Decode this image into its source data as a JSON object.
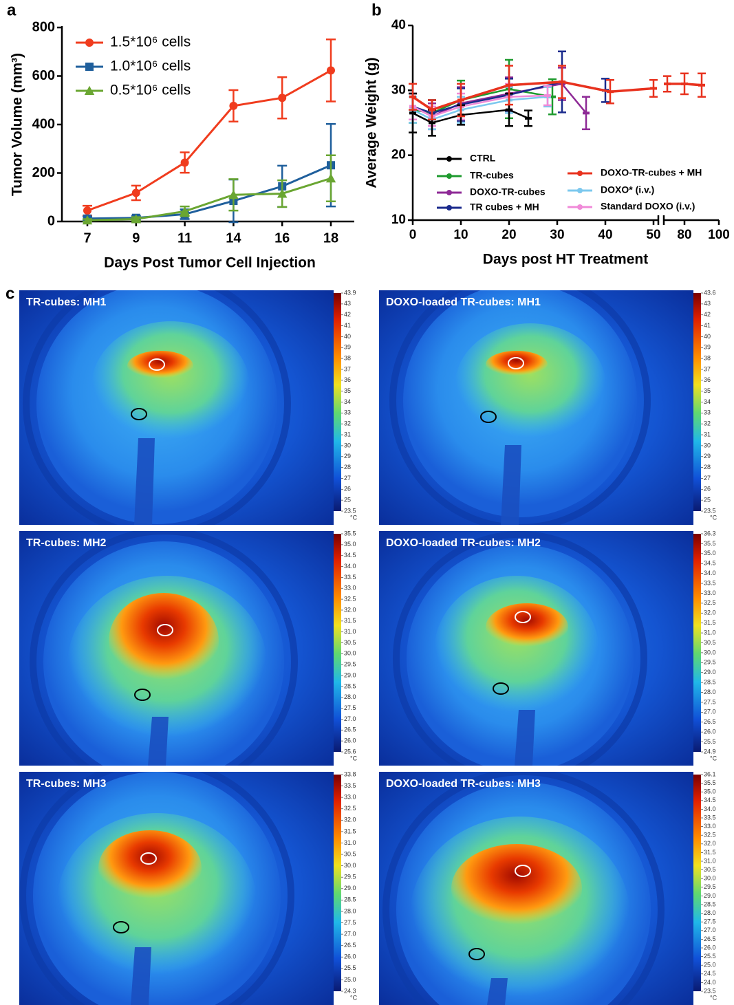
{
  "chart_data": [
    {
      "type": "line",
      "panel_label": "a",
      "xlabel": "Days Post Tumor Cell Injection",
      "ylabel": "Tumor Volume (mm³)",
      "categories": [
        "7",
        "9",
        "11",
        "14",
        "16",
        "18"
      ],
      "ylim": [
        0,
        800
      ],
      "yticks": [
        0,
        200,
        400,
        600,
        800
      ],
      "series": [
        {
          "name": "1.5*10⁶ cells",
          "color": "#f03c1e",
          "marker": "circle",
          "values": [
            45,
            118,
            243,
            477,
            510,
            623
          ],
          "errors": [
            20,
            30,
            42,
            65,
            85,
            128
          ]
        },
        {
          "name": "1.0*10⁶ cells",
          "color": "#1f5f9c",
          "marker": "square",
          "values": [
            12,
            15,
            30,
            85,
            145,
            232
          ],
          "errors": [
            8,
            8,
            20,
            88,
            85,
            170
          ]
        },
        {
          "name": "0.5*10⁶ cells",
          "color": "#6aa632",
          "marker": "triangle",
          "values": [
            5,
            10,
            42,
            110,
            115,
            178
          ],
          "errors": [
            5,
            8,
            20,
            65,
            55,
            95
          ]
        }
      ]
    },
    {
      "type": "line",
      "panel_label": "b",
      "xlabel": "Days post HT Treatment",
      "ylabel": "Average Weight (g)",
      "x_segments": [
        [
          0,
          51
        ],
        [
          68,
          100
        ]
      ],
      "xticks": [
        0,
        10,
        20,
        30,
        40,
        50,
        80,
        100
      ],
      "ylim": [
        10,
        40
      ],
      "yticks": [
        10,
        20,
        30,
        40
      ],
      "series": [
        {
          "name": "CTRL",
          "color": "#000000",
          "x": [
            0,
            4,
            10,
            20,
            24
          ],
          "values": [
            26.5,
            25,
            26.2,
            27,
            25.7
          ],
          "errors": [
            3,
            2,
            1.5,
            2.5,
            1.2
          ]
        },
        {
          "name": "TR-cubes",
          "color": "#1e9a2e",
          "x": [
            0,
            4,
            10,
            20,
            29
          ],
          "values": [
            27,
            26.5,
            28.5,
            30.2,
            29
          ],
          "errors": [
            2,
            2,
            3,
            4.5,
            2.7
          ]
        },
        {
          "name": "DOXO-TR-cubes",
          "color": "#8e2a96",
          "x": [
            0,
            4,
            10,
            20,
            31,
            36
          ],
          "values": [
            27.5,
            26,
            28,
            29.5,
            31,
            26.5
          ],
          "errors": [
            2,
            2,
            2.5,
            2.5,
            2.5,
            2.5
          ]
        },
        {
          "name": "TR cubes + MH",
          "color": "#1a2a8c",
          "x": [
            0,
            4,
            10,
            20,
            31,
            40
          ],
          "values": [
            27.5,
            26.5,
            27.8,
            29.3,
            31.3,
            30
          ],
          "errors": [
            2,
            2,
            2.5,
            2.5,
            4.7,
            1.8
          ]
        },
        {
          "name": "DOXO-TR-cubes + MH",
          "color": "#e8321e",
          "x": [
            0,
            4,
            10,
            20,
            31,
            41,
            50,
            70,
            80,
            90
          ],
          "values": [
            29,
            27,
            28.5,
            30.8,
            31.3,
            29.8,
            30.3,
            31,
            31,
            30.8
          ],
          "errors": [
            2,
            1.5,
            2.5,
            3,
            2.5,
            1.8,
            1.3,
            1.2,
            1.6,
            1.8
          ]
        },
        {
          "name": "DOXO* (i.v.)",
          "color": "#7cc8ee",
          "x": [
            0,
            4,
            10,
            20,
            28
          ],
          "values": [
            27,
            25.5,
            27,
            28.5,
            29
          ],
          "errors": [
            2,
            1.5,
            2,
            2,
            1.5
          ]
        },
        {
          "name": "Standard DOXO (i.v.)",
          "color": "#f08ad8",
          "x": [
            0,
            4,
            10,
            20,
            28
          ],
          "values": [
            27.5,
            26,
            27.5,
            29,
            29.2
          ],
          "errors": [
            2,
            1.5,
            2,
            2,
            1.5
          ]
        }
      ]
    }
  ],
  "thermal": {
    "panel_label": "c",
    "images": [
      {
        "title": "TR-cubes: MH1",
        "unit": "°C",
        "colorbar_labels": [
          "43.9",
          "43",
          "42",
          "41",
          "40",
          "39",
          "38",
          "37",
          "36",
          "35",
          "34",
          "33",
          "32",
          "31",
          "30",
          "29",
          "28",
          "27",
          "26",
          "25",
          "23.5"
        ]
      },
      {
        "title": "DOXO-loaded TR-cubes: MH1",
        "unit": "°C",
        "colorbar_labels": [
          "43.6",
          "43",
          "42",
          "41",
          "40",
          "39",
          "38",
          "37",
          "36",
          "35",
          "34",
          "33",
          "32",
          "31",
          "30",
          "29",
          "28",
          "27",
          "26",
          "25",
          "23.5"
        ]
      },
      {
        "title": "TR-cubes: MH2",
        "unit": "°C",
        "colorbar_labels": [
          "35.5",
          "35.0",
          "34.5",
          "34.0",
          "33.5",
          "33.0",
          "32.5",
          "32.0",
          "31.5",
          "31.0",
          "30.5",
          "30.0",
          "29.5",
          "29.0",
          "28.5",
          "28.0",
          "27.5",
          "27.0",
          "26.5",
          "26.0",
          "25.6"
        ]
      },
      {
        "title": "DOXO-loaded TR-cubes: MH2",
        "unit": "°C",
        "colorbar_labels": [
          "36.3",
          "35.5",
          "35.0",
          "34.5",
          "34.0",
          "33.5",
          "33.0",
          "32.5",
          "32.0",
          "31.5",
          "31.0",
          "30.5",
          "30.0",
          "29.5",
          "29.0",
          "28.5",
          "28.0",
          "27.5",
          "27.0",
          "26.5",
          "26.0",
          "25.5",
          "24.9"
        ]
      },
      {
        "title": "TR-cubes: MH3",
        "unit": "°C",
        "colorbar_labels": [
          "33.8",
          "33.5",
          "33.0",
          "32.5",
          "32.0",
          "31.5",
          "31.0",
          "30.5",
          "30.0",
          "29.5",
          "29.0",
          "28.5",
          "28.0",
          "27.5",
          "27.0",
          "26.5",
          "26.0",
          "25.5",
          "25.0",
          "24.3"
        ]
      },
      {
        "title": "DOXO-loaded TR-cubes: MH3",
        "unit": "°C",
        "colorbar_labels": [
          "36.1",
          "35.5",
          "35.0",
          "34.5",
          "34.0",
          "33.5",
          "33.0",
          "32.5",
          "32.0",
          "31.5",
          "31.0",
          "30.5",
          "30.0",
          "29.5",
          "29.0",
          "28.5",
          "28.0",
          "27.5",
          "27.0",
          "26.5",
          "26.0",
          "25.5",
          "25.0",
          "24.5",
          "24.0",
          "23.5"
        ]
      }
    ]
  }
}
